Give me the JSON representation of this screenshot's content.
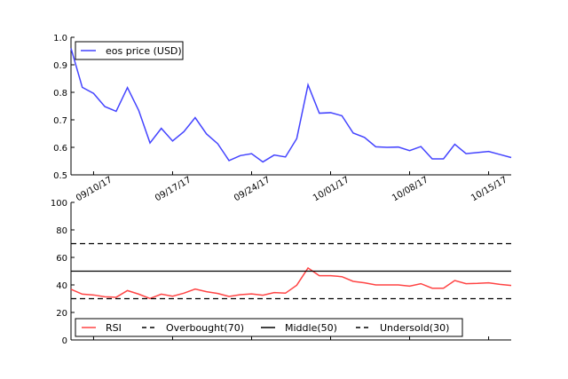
{
  "chart_data": [
    {
      "type": "line",
      "title": "",
      "xlabel": "",
      "ylabel": "",
      "x_start_date": "09/08/17",
      "x_tick_labels": [
        "09/10/17",
        "09/17/17",
        "09/24/17",
        "10/01/17",
        "10/08/17",
        "10/15/17"
      ],
      "x_tick_day_offsets": [
        2,
        9,
        16,
        23,
        30,
        37
      ],
      "ylim": [
        0.5,
        1.0
      ],
      "y_ticks": [
        "0.5",
        "0.6",
        "0.7",
        "0.8",
        "0.9",
        "1.0"
      ],
      "legend_placement": "top-left",
      "series": [
        {
          "name": "eos price (USD)",
          "color": "#4444ff",
          "values": [
            0.96,
            0.818,
            0.796,
            0.748,
            0.731,
            0.817,
            0.734,
            0.616,
            0.669,
            0.623,
            0.657,
            0.708,
            0.649,
            0.613,
            0.552,
            0.57,
            0.577,
            0.547,
            0.572,
            0.565,
            0.632,
            0.827,
            0.724,
            0.726,
            0.715,
            0.652,
            0.636,
            0.602,
            0.6,
            0.601,
            0.588,
            0.603,
            0.558,
            0.558,
            0.611,
            0.577,
            0.581,
            0.585,
            0.574,
            0.563
          ]
        }
      ]
    },
    {
      "type": "line",
      "title": "",
      "xlabel": "",
      "ylabel": "",
      "ylim": [
        0,
        100
      ],
      "y_ticks": [
        "0",
        "20",
        "40",
        "60",
        "80",
        "100"
      ],
      "legend_placement": "bottom-left",
      "series": [
        {
          "name": "RSI",
          "color": "#ff4444",
          "values": [
            36.8,
            33.3,
            32.7,
            31.4,
            31.0,
            35.9,
            33.3,
            30.1,
            33.3,
            31.8,
            34.0,
            37.0,
            35.1,
            33.8,
            31.6,
            32.9,
            33.5,
            32.5,
            34.4,
            34.0,
            39.8,
            52.3,
            46.7,
            46.7,
            46.0,
            42.6,
            41.5,
            40.0,
            40.0,
            40.0,
            39.1,
            40.9,
            37.6,
            37.6,
            43.2,
            40.9,
            41.1,
            41.5,
            40.4,
            39.6
          ]
        },
        {
          "name": "Overbought(70)",
          "color": "#000000",
          "style": "dashed",
          "constant": 70
        },
        {
          "name": "Middle(50)",
          "color": "#000000",
          "style": "solid",
          "constant": 50
        },
        {
          "name": "Undersold(30)",
          "color": "#000000",
          "style": "dashed",
          "constant": 30
        }
      ]
    }
  ]
}
